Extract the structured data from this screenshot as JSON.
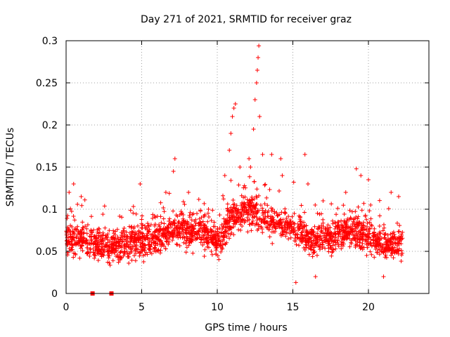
{
  "chart_data": {
    "type": "scatter",
    "title": "Day 271 of 2021, SRMTID for receiver graz",
    "xlabel": "GPS time / hours",
    "ylabel": "SRMTID / TECUs",
    "xlim": [
      0,
      24
    ],
    "ylim": [
      0,
      0.3
    ],
    "grid": true,
    "marker": "+",
    "color": "#ff0000",
    "x_ticks": [
      0,
      5,
      10,
      15,
      20
    ],
    "x_tick_labels": [
      "0",
      "5",
      "10",
      "15",
      "20"
    ],
    "y_ticks": [
      0,
      0.05,
      0.1,
      0.15,
      0.2,
      0.25,
      0.3
    ],
    "y_tick_labels": [
      "0",
      "0.05",
      "0.1",
      "0.15",
      "0.2",
      "0.25",
      "0.3"
    ],
    "time_range_hours": [
      0,
      22.25
    ],
    "trend": [
      {
        "x": 0.0,
        "y": 0.065
      },
      {
        "x": 1.0,
        "y": 0.065
      },
      {
        "x": 2.0,
        "y": 0.058
      },
      {
        "x": 3.0,
        "y": 0.055
      },
      {
        "x": 4.0,
        "y": 0.06
      },
      {
        "x": 5.0,
        "y": 0.062
      },
      {
        "x": 6.0,
        "y": 0.065
      },
      {
        "x": 7.0,
        "y": 0.075
      },
      {
        "x": 8.0,
        "y": 0.075
      },
      {
        "x": 9.0,
        "y": 0.075
      },
      {
        "x": 10.0,
        "y": 0.06
      },
      {
        "x": 11.0,
        "y": 0.09
      },
      {
        "x": 12.0,
        "y": 0.1
      },
      {
        "x": 13.0,
        "y": 0.09
      },
      {
        "x": 14.0,
        "y": 0.085
      },
      {
        "x": 15.0,
        "y": 0.08
      },
      {
        "x": 16.0,
        "y": 0.065
      },
      {
        "x": 17.0,
        "y": 0.065
      },
      {
        "x": 18.0,
        "y": 0.07
      },
      {
        "x": 19.0,
        "y": 0.075
      },
      {
        "x": 20.0,
        "y": 0.065
      },
      {
        "x": 21.0,
        "y": 0.055
      },
      {
        "x": 22.0,
        "y": 0.06
      }
    ],
    "highlight_points": [
      {
        "x": 0.2,
        "y": 0.12
      },
      {
        "x": 0.5,
        "y": 0.13
      },
      {
        "x": 1.0,
        "y": 0.115
      },
      {
        "x": 4.9,
        "y": 0.13
      },
      {
        "x": 6.6,
        "y": 0.12
      },
      {
        "x": 7.1,
        "y": 0.145
      },
      {
        "x": 7.2,
        "y": 0.16
      },
      {
        "x": 8.1,
        "y": 0.12
      },
      {
        "x": 10.5,
        "y": 0.14
      },
      {
        "x": 10.8,
        "y": 0.17
      },
      {
        "x": 10.9,
        "y": 0.19
      },
      {
        "x": 11.0,
        "y": 0.21
      },
      {
        "x": 11.1,
        "y": 0.22
      },
      {
        "x": 11.2,
        "y": 0.225
      },
      {
        "x": 11.5,
        "y": 0.15
      },
      {
        "x": 12.1,
        "y": 0.16
      },
      {
        "x": 12.2,
        "y": 0.15
      },
      {
        "x": 12.4,
        "y": 0.195
      },
      {
        "x": 12.5,
        "y": 0.23
      },
      {
        "x": 12.6,
        "y": 0.25
      },
      {
        "x": 12.65,
        "y": 0.265
      },
      {
        "x": 12.7,
        "y": 0.28
      },
      {
        "x": 12.75,
        "y": 0.294
      },
      {
        "x": 12.8,
        "y": 0.21
      },
      {
        "x": 13.0,
        "y": 0.165
      },
      {
        "x": 13.6,
        "y": 0.165
      },
      {
        "x": 14.2,
        "y": 0.16
      },
      {
        "x": 14.3,
        "y": 0.14
      },
      {
        "x": 15.8,
        "y": 0.165
      },
      {
        "x": 16.0,
        "y": 0.13
      },
      {
        "x": 17.0,
        "y": 0.11
      },
      {
        "x": 18.5,
        "y": 0.12
      },
      {
        "x": 19.2,
        "y": 0.148
      },
      {
        "x": 19.5,
        "y": 0.14
      },
      {
        "x": 20.0,
        "y": 0.135
      },
      {
        "x": 21.5,
        "y": 0.12
      },
      {
        "x": 22.0,
        "y": 0.115
      },
      {
        "x": 15.2,
        "y": 0.013
      },
      {
        "x": 16.5,
        "y": 0.02
      },
      {
        "x": 21.0,
        "y": 0.02
      }
    ],
    "zero_markers": [
      {
        "x": 1.75,
        "y": 0
      },
      {
        "x": 3.0,
        "y": 0
      }
    ],
    "generated_points": 2200
  }
}
